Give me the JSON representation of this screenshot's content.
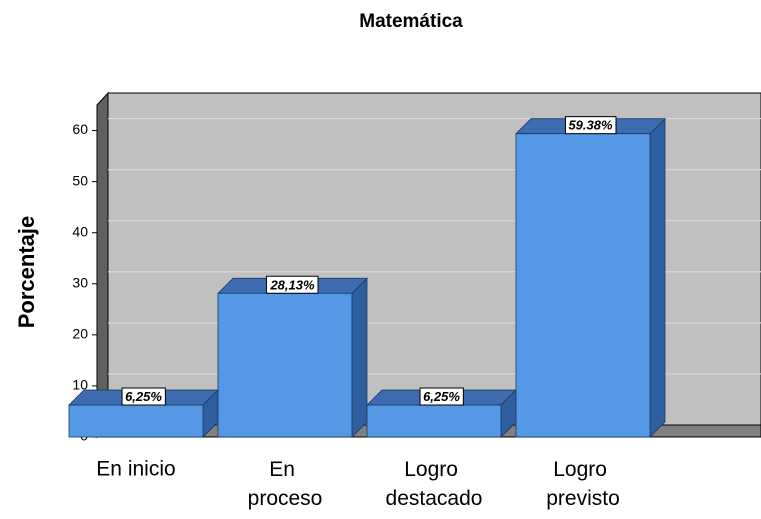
{
  "chart_data": {
    "type": "bar",
    "title": "Matemática",
    "y_label": "Porcentaje",
    "categories": [
      "En inicio",
      "En proceso",
      "Logro destacado",
      "Logro previsto"
    ],
    "values": [
      6.25,
      28.13,
      6.25,
      59.38
    ],
    "value_labels": [
      "6,25%",
      "28,13%",
      "6,25%",
      "59.38%"
    ],
    "color": "#5598e6",
    "ylim": [
      0,
      65
    ],
    "yticks": [
      0,
      10,
      20,
      30,
      40,
      50,
      60
    ],
    "grid": true
  }
}
